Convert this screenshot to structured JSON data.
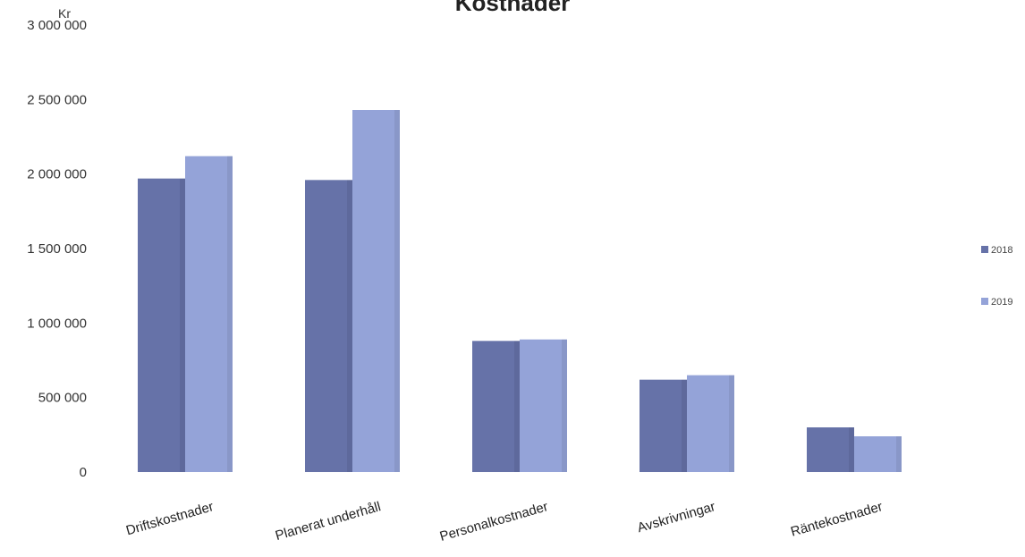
{
  "chart_data": {
    "type": "bar",
    "title": "Kostnader",
    "ylabel": "Kr",
    "xlabel": "",
    "ylim": [
      0,
      3000000
    ],
    "y_ticks": [
      0,
      500000,
      1000000,
      1500000,
      2000000,
      2500000,
      3000000
    ],
    "y_tick_labels": [
      "0",
      "500 000",
      "1 000 000",
      "1 500 000",
      "2 000 000",
      "2 500 000",
      "3 000 000"
    ],
    "categories": [
      "Driftskostnader",
      "Planerat underhåll",
      "Personalkostnader",
      "Avskrivningar",
      "Räntekostnader"
    ],
    "series": [
      {
        "name": "2018",
        "color": "#6672a8",
        "values": [
          1970000,
          1960000,
          880000,
          620000,
          300000
        ]
      },
      {
        "name": "2019",
        "color": "#94a3d8",
        "values": [
          2120000,
          2430000,
          890000,
          650000,
          240000
        ]
      }
    ],
    "grid": false,
    "legend_position": "right"
  }
}
